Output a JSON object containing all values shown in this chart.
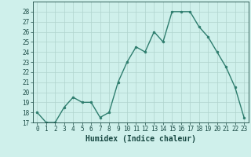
{
  "x": [
    0,
    1,
    2,
    3,
    4,
    5,
    6,
    7,
    8,
    9,
    10,
    11,
    12,
    13,
    14,
    15,
    16,
    17,
    18,
    19,
    20,
    21,
    22,
    23
  ],
  "y": [
    18.0,
    17.0,
    17.0,
    18.5,
    19.5,
    19.0,
    19.0,
    17.5,
    18.0,
    21.0,
    23.0,
    24.5,
    24.0,
    26.0,
    25.0,
    28.0,
    28.0,
    28.0,
    26.5,
    25.5,
    24.0,
    22.5,
    20.5,
    17.5
  ],
  "line_color": "#2e7d6e",
  "marker": "o",
  "marker_size": 2.0,
  "bg_color": "#cff0eb",
  "grid_color": "#b0d4ce",
  "xlabel": "Humidex (Indice chaleur)",
  "ylim": [
    17,
    29
  ],
  "xlim": [
    -0.5,
    23.5
  ],
  "yticks": [
    17,
    18,
    19,
    20,
    21,
    22,
    23,
    24,
    25,
    26,
    27,
    28
  ],
  "xticks": [
    0,
    1,
    2,
    3,
    4,
    5,
    6,
    7,
    8,
    9,
    10,
    11,
    12,
    13,
    14,
    15,
    16,
    17,
    18,
    19,
    20,
    21,
    22,
    23
  ],
  "tick_label_fontsize": 5.5,
  "xlabel_fontsize": 7.0,
  "line_width": 1.0
}
